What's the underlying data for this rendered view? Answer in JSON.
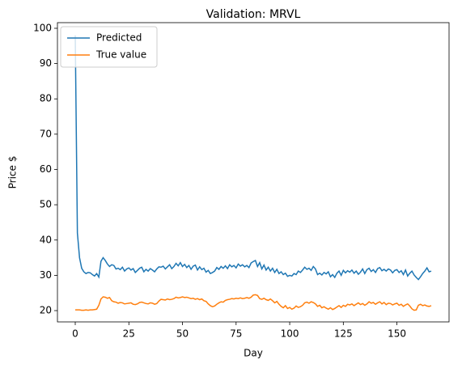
{
  "chart_data": {
    "type": "line",
    "title": "Validation: MRVL",
    "x_label": "Day",
    "y_label": "Price $",
    "x": [
      0,
      1,
      2,
      3,
      4,
      5,
      6,
      7,
      8,
      9,
      10,
      11,
      12,
      13,
      14,
      15,
      16,
      17,
      18,
      19,
      20,
      21,
      22,
      23,
      24,
      25,
      26,
      27,
      28,
      29,
      30,
      31,
      32,
      33,
      34,
      35,
      36,
      37,
      38,
      39,
      40,
      41,
      42,
      43,
      44,
      45,
      46,
      47,
      48,
      49,
      50,
      51,
      52,
      53,
      54,
      55,
      56,
      57,
      58,
      59,
      60,
      61,
      62,
      63,
      64,
      65,
      66,
      67,
      68,
      69,
      70,
      71,
      72,
      73,
      74,
      75,
      76,
      77,
      78,
      79,
      80,
      81,
      82,
      83,
      84,
      85,
      86,
      87,
      88,
      89,
      90,
      91,
      92,
      93,
      94,
      95,
      96,
      97,
      98,
      99,
      100,
      101,
      102,
      103,
      104,
      105,
      106,
      107,
      108,
      109,
      110,
      111,
      112,
      113,
      114,
      115,
      116,
      117,
      118,
      119,
      120,
      121,
      122,
      123,
      124,
      125,
      126,
      127,
      128,
      129,
      130,
      131,
      132,
      133,
      134,
      135,
      136,
      137,
      138,
      139,
      140,
      141,
      142,
      143,
      144,
      145,
      146,
      147,
      148,
      149,
      150,
      151,
      152,
      153,
      154,
      155,
      156,
      157,
      158,
      159,
      160,
      161,
      162,
      163,
      164,
      165,
      166
    ],
    "series": [
      {
        "name": "Predicted",
        "color": "#1f77b4",
        "values": [
          98,
          42,
          35,
          32,
          31,
          30.5,
          30.8,
          30.7,
          30.2,
          29.8,
          30.5,
          29.5,
          34,
          35,
          34.2,
          33.2,
          32.5,
          33,
          32.8,
          31.8,
          32,
          31.6,
          32.3,
          31.2,
          31.8,
          32.1,
          31.5,
          31.9,
          30.8,
          31.4,
          32,
          32.3,
          31,
          31.7,
          31.2,
          31.9,
          31.5,
          31,
          31.8,
          32.4,
          32.3,
          32.6,
          31.8,
          32.4,
          33,
          31.9,
          32.5,
          33.4,
          32.7,
          33.6,
          32.5,
          33.1,
          32.2,
          32.8,
          31.7,
          32.6,
          32.9,
          31.5,
          32.4,
          31.6,
          32,
          30.9,
          31.4,
          30.5,
          30.8,
          31.2,
          32.2,
          31.7,
          32.5,
          32,
          32.7,
          31.9,
          33,
          32.4,
          32.8,
          32.1,
          33.2,
          32.6,
          33,
          32.4,
          32.8,
          32.2,
          33.5,
          33.9,
          34.2,
          32.5,
          33.6,
          31.8,
          32.9,
          31.5,
          32.3,
          31.2,
          32,
          30.8,
          31.7,
          30.5,
          31,
          30.2,
          30.6,
          29.7,
          30,
          29.8,
          30.5,
          30.2,
          31.2,
          30.8,
          31.5,
          32.3,
          31.7,
          32,
          31.4,
          32.5,
          31.8,
          30.2,
          30.6,
          30.1,
          30.8,
          30.4,
          31,
          29.6,
          30.2,
          29.4,
          30.6,
          31.2,
          30,
          31.4,
          30.7,
          31.3,
          30.9,
          31.5,
          30.6,
          31.2,
          30.3,
          30.9,
          31.8,
          30.5,
          31.6,
          32,
          31.1,
          31.6,
          30.8,
          31.9,
          32.2,
          31.3,
          31.7,
          31.2,
          31.8,
          31.5,
          30.7,
          31.4,
          31.6,
          30.8,
          31.3,
          30.2,
          31.5,
          29.8,
          30.6,
          31.2,
          30.1,
          29.4,
          28.8,
          29.6,
          30.5,
          31.2,
          32.1,
          31,
          31.2
        ]
      },
      {
        "name": "True value",
        "color": "#ff7f0e",
        "values": [
          20.2,
          20.2,
          20.2,
          20.1,
          20.1,
          20.2,
          20.1,
          20.2,
          20.2,
          20.3,
          20.4,
          21.5,
          23.3,
          23.9,
          23.8,
          23.5,
          23.7,
          22.8,
          22.5,
          22.4,
          22.1,
          22.3,
          22.2,
          21.9,
          22,
          22.1,
          22.2,
          21.8,
          21.7,
          21.9,
          22.3,
          22.4,
          22.2,
          22,
          21.9,
          22.2,
          22.1,
          21.8,
          22,
          22.7,
          23.2,
          23.1,
          23,
          23.3,
          23.1,
          23.2,
          23.4,
          23.8,
          23.6,
          23.7,
          23.9,
          23.7,
          23.8,
          23.6,
          23.4,
          23.5,
          23.2,
          23.4,
          23.1,
          23.3,
          22.8,
          22.6,
          21.9,
          21.4,
          21.1,
          21.3,
          21.8,
          22.2,
          22.5,
          22.4,
          22.9,
          23.1,
          23.2,
          23.4,
          23.3,
          23.5,
          23.4,
          23.6,
          23.4,
          23.5,
          23.7,
          23.5,
          23.8,
          24.4,
          24.5,
          24.3,
          23.4,
          23.2,
          23.5,
          23.1,
          22.9,
          23.3,
          22.8,
          22.2,
          22.6,
          21.8,
          21.2,
          20.8,
          21.4,
          20.6,
          20.9,
          20.4,
          20.7,
          21.3,
          20.9,
          21.1,
          21.5,
          22.2,
          22.4,
          22.1,
          22.5,
          22.3,
          21.9,
          21.2,
          21.5,
          20.8,
          21.1,
          20.7,
          20.4,
          20.8,
          20.3,
          20.6,
          21,
          21.4,
          20.9,
          21.5,
          21.2,
          21.8,
          21.6,
          21.9,
          21.4,
          21.8,
          22.2,
          21.7,
          22,
          21.5,
          21.9,
          22.5,
          22.1,
          22.3,
          21.8,
          22.2,
          22.5,
          21.9,
          22.3,
          21.7,
          22.1,
          22,
          21.6,
          21.9,
          22.1,
          21.5,
          21.8,
          21.2,
          21.6,
          21.9,
          21.3,
          20.5,
          20.1,
          20.2,
          21.5,
          21.8,
          21.4,
          21.6,
          21.3,
          21.2,
          21.4
        ]
      }
    ],
    "xlim": [
      -8.3,
      174.3
    ],
    "ylim": [
      16.8,
      101.6
    ],
    "xticks": [
      0,
      25,
      50,
      75,
      100,
      125,
      150
    ],
    "yticks": [
      20,
      30,
      40,
      50,
      60,
      70,
      80,
      90,
      100
    ],
    "legend": "upper left"
  }
}
